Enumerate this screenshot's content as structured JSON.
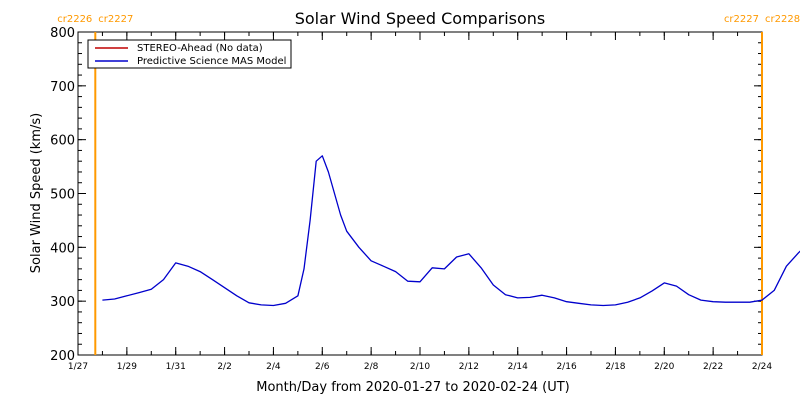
{
  "chart_data": {
    "type": "line",
    "title": "Solar Wind Speed Comparisons",
    "xlabel": "Month/Day from 2020-01-27 to 2020-02-24 (UT)",
    "ylabel": "Solar Wind Speed (km/s)",
    "ylim": [
      200,
      800
    ],
    "xlim": [
      "2020-01-27",
      "2020-02-24"
    ],
    "grid": false,
    "legend_position": "top-left",
    "x_ticks": [
      "1/27",
      "1/29",
      "1/31",
      "2/2",
      "2/4",
      "2/6",
      "2/8",
      "2/10",
      "2/12",
      "2/14",
      "2/16",
      "2/18",
      "2/20",
      "2/22",
      "2/24"
    ],
    "y_ticks": [
      "200",
      "300",
      "400",
      "500",
      "600",
      "700",
      "800"
    ],
    "series": [
      {
        "name": "STEREO-Ahead (No data)",
        "color": "#c00000",
        "points": []
      },
      {
        "name": "Predictive Science MAS Model",
        "color": "#0000cc",
        "points": [
          [
            "2020-01-28 00:00",
            302
          ],
          [
            "2020-01-28 12:00",
            304
          ],
          [
            "2020-01-29 00:00",
            310
          ],
          [
            "2020-01-29 12:00",
            316
          ],
          [
            "2020-01-30 00:00",
            322
          ],
          [
            "2020-01-30 12:00",
            340
          ],
          [
            "2020-01-31 00:00",
            371
          ],
          [
            "2020-01-31 12:00",
            365
          ],
          [
            "2020-02-01 00:00",
            355
          ],
          [
            "2020-02-01 12:00",
            340
          ],
          [
            "2020-02-02 00:00",
            325
          ],
          [
            "2020-02-02 12:00",
            310
          ],
          [
            "2020-02-03 00:00",
            297
          ],
          [
            "2020-02-03 12:00",
            293
          ],
          [
            "2020-02-04 00:00",
            292
          ],
          [
            "2020-02-04 12:00",
            296
          ],
          [
            "2020-02-05 00:00",
            310
          ],
          [
            "2020-02-05 06:00",
            360
          ],
          [
            "2020-02-05 12:00",
            450
          ],
          [
            "2020-02-05 18:00",
            560
          ],
          [
            "2020-02-06 00:00",
            570
          ],
          [
            "2020-02-06 06:00",
            540
          ],
          [
            "2020-02-06 12:00",
            500
          ],
          [
            "2020-02-06 18:00",
            460
          ],
          [
            "2020-02-07 00:00",
            430
          ],
          [
            "2020-02-07 12:00",
            400
          ],
          [
            "2020-02-08 00:00",
            375
          ],
          [
            "2020-02-08 12:00",
            365
          ],
          [
            "2020-02-09 00:00",
            355
          ],
          [
            "2020-02-09 12:00",
            337
          ],
          [
            "2020-02-10 00:00",
            336
          ],
          [
            "2020-02-10 12:00",
            362
          ],
          [
            "2020-02-11 00:00",
            360
          ],
          [
            "2020-02-11 12:00",
            382
          ],
          [
            "2020-02-12 00:00",
            388
          ],
          [
            "2020-02-12 12:00",
            362
          ],
          [
            "2020-02-13 00:00",
            330
          ],
          [
            "2020-02-13 12:00",
            312
          ],
          [
            "2020-02-14 00:00",
            306
          ],
          [
            "2020-02-14 12:00",
            307
          ],
          [
            "2020-02-15 00:00",
            311
          ],
          [
            "2020-02-15 12:00",
            306
          ],
          [
            "2020-02-16 00:00",
            299
          ],
          [
            "2020-02-16 12:00",
            296
          ],
          [
            "2020-02-17 00:00",
            293
          ],
          [
            "2020-02-17 12:00",
            292
          ],
          [
            "2020-02-18 00:00",
            293
          ],
          [
            "2020-02-18 12:00",
            298
          ],
          [
            "2020-02-19 00:00",
            306
          ],
          [
            "2020-02-19 12:00",
            319
          ],
          [
            "2020-02-20 00:00",
            334
          ],
          [
            "2020-02-20 12:00",
            328
          ],
          [
            "2020-02-21 00:00",
            312
          ],
          [
            "2020-02-21 12:00",
            302
          ],
          [
            "2020-02-22 00:00",
            299
          ],
          [
            "2020-02-22 12:00",
            298
          ],
          [
            "2020-02-23 00:00",
            298
          ],
          [
            "2020-02-23 12:00",
            298
          ],
          [
            "2020-02-24 00:00",
            302
          ],
          [
            "2020-02-24 12:00",
            320
          ],
          [
            "2020-02-25 00:00",
            365
          ],
          [
            "2020-02-25 12:00",
            390
          ],
          [
            "2020-02-26 00:00",
            412
          ]
        ]
      }
    ],
    "carrington_markers": [
      {
        "date": "2020-01-27 17:00",
        "left_label": "cr2226",
        "right_label": "cr2227",
        "color": "#ff9900"
      },
      {
        "date": "2020-02-24 00:00",
        "left_label": "cr2227",
        "right_label": "cr2228",
        "color": "#ff9900"
      }
    ]
  }
}
